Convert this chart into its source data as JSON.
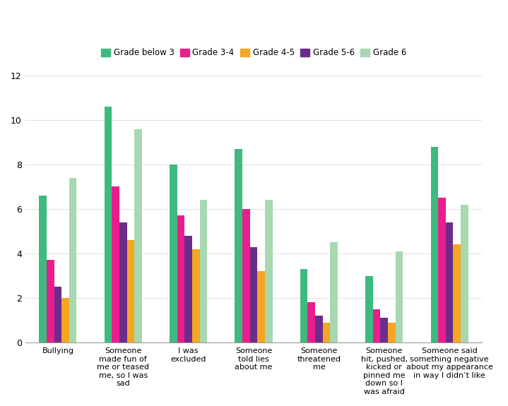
{
  "categories": [
    "Bullying",
    "Someone\nmade fun of\nme or teased\nme, so I was\nsad",
    "I was\nexcluded",
    "Someone\ntold lies\nabout me",
    "Someone\nthreatened\nme",
    "Someone\nhit, pushed,\nkicked or\npinned me\ndown so I\nwas afraid",
    "Someone said\nsomething negative\nabout my appearance\nin way I didn’t like"
  ],
  "series": {
    "Grade below 3": [
      6.6,
      10.6,
      8.0,
      8.7,
      3.3,
      3.0,
      8.8
    ],
    "Grade 3-4": [
      3.7,
      7.0,
      5.7,
      6.0,
      1.8,
      1.5,
      6.5
    ],
    "Grade 5-6": [
      2.5,
      5.4,
      4.8,
      4.3,
      1.2,
      1.1,
      5.4
    ],
    "Grade 4-5": [
      2.0,
      4.6,
      4.2,
      3.2,
      0.9,
      0.9,
      4.4
    ],
    "Grade 6": [
      7.4,
      9.6,
      6.4,
      6.4,
      4.5,
      4.1,
      6.2
    ]
  },
  "bar_order": [
    "Grade below 3",
    "Grade 3-4",
    "Grade 5-6",
    "Grade 4-5",
    "Grade 6"
  ],
  "legend_order": [
    "Grade below 3",
    "Grade 3-4",
    "Grade 4-5",
    "Grade 5-6",
    "Grade 6"
  ],
  "colors": {
    "Grade below 3": "#3dba7e",
    "Grade 3-4": "#e91e8c",
    "Grade 4-5": "#f5a623",
    "Grade 5-6": "#6b2d8b",
    "Grade 6": "#a8d8b0"
  },
  "ylim": [
    0,
    12
  ],
  "yticks": [
    0,
    2,
    4,
    6,
    8,
    10,
    12
  ],
  "bar_width": 0.115,
  "figsize": [
    7.19,
    5.75
  ],
  "dpi": 100,
  "background_color": "#ffffff",
  "grid_color": "#e0e0e0",
  "spine_color": "#999999",
  "tick_fontsize": 9,
  "label_fontsize": 8,
  "legend_fontsize": 8.5
}
